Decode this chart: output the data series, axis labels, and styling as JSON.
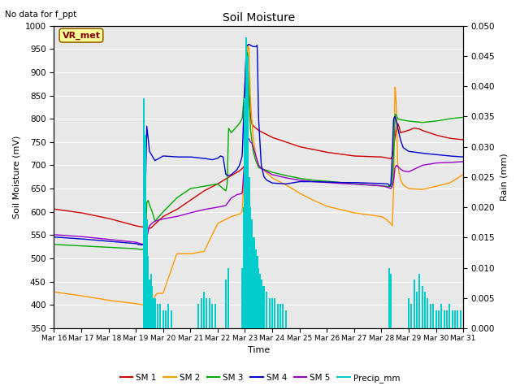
{
  "title": "Soil Moisture",
  "subtitle": "No data for f_ppt",
  "xlabel": "Time",
  "ylabel_left": "Soil Moisture (mV)",
  "ylabel_right": "Rain (mm)",
  "annotation": "VR_met",
  "ylim_left": [
    350,
    1000
  ],
  "ylim_right": [
    0.0,
    0.05
  ],
  "yticks_left": [
    350,
    400,
    450,
    500,
    550,
    600,
    650,
    700,
    750,
    800,
    850,
    900,
    950,
    1000
  ],
  "yticks_right": [
    0.0,
    0.005,
    0.01,
    0.015,
    0.02,
    0.025,
    0.03,
    0.035,
    0.04,
    0.045,
    0.05
  ],
  "colors": {
    "SM1": "#cc0000",
    "SM2": "#ff9900",
    "SM3": "#00aa00",
    "SM4": "#0000cc",
    "SM5": "#9900cc",
    "Precip": "#00cccc",
    "background": "#e8e8e8",
    "annotation_bg": "#ffff99",
    "annotation_border": "#996600"
  },
  "legend_labels": [
    "SM 1",
    "SM 2",
    "SM 3",
    "SM 4",
    "SM 5",
    "Precip_mm"
  ],
  "xstart_day": 16,
  "xend_day": 31,
  "xtick_labels": [
    "Mar 16",
    "Mar 17",
    "Mar 18",
    "Mar 19",
    "Mar 20",
    "Mar 21",
    "Mar 22",
    "Mar 23",
    "Mar 24",
    "Mar 25",
    "Mar 26",
    "Mar 27",
    "Mar 28",
    "Mar 29",
    "Mar 30",
    "Mar 31"
  ]
}
